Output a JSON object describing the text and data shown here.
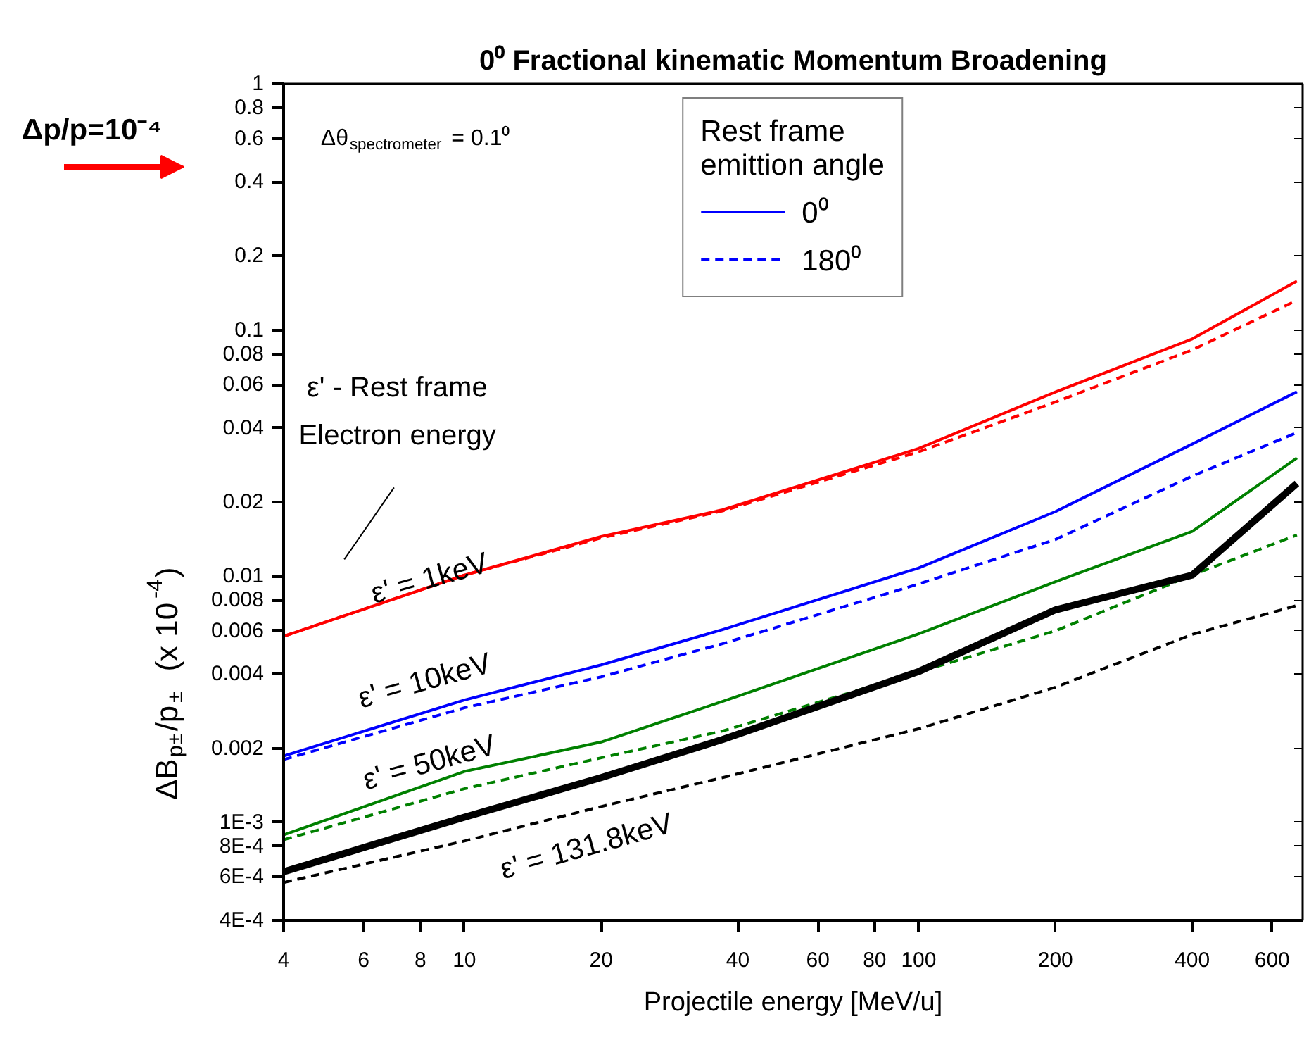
{
  "chart_data": {
    "type": "line",
    "title": "0⁰ Fractional kinematic Momentum Broadening",
    "xlabel": "Projectile energy [MeV/u]",
    "ylabel": "ΔB$_{p±}$/p$_{±}$  (x 10$^{-4}$)",
    "legend_title": "Rest frame\nemittion angle",
    "legend": "top",
    "log": "xy",
    "grid": false,
    "xlim": [
      4,
      700
    ],
    "ylim": [
      0.0004,
      1
    ],
    "xticks": [
      4,
      6,
      8,
      10,
      20,
      40,
      60,
      80,
      100,
      200,
      400,
      600
    ],
    "yticks": [
      {
        "value": 0.0004,
        "label": "4E-4"
      },
      {
        "value": 0.0006,
        "label": "6E-4"
      },
      {
        "value": 0.0008,
        "label": "8E-4"
      },
      {
        "value": 0.001,
        "label": "1E-3"
      },
      0.002,
      0.004,
      0.006,
      0.008,
      0.01,
      0.02,
      0.04,
      0.06,
      0.08,
      0.1,
      0.2,
      0.4,
      0.6,
      0.8,
      1
    ],
    "x": [
      4,
      10,
      20,
      37,
      100,
      200,
      400,
      680
    ],
    "series": [
      {
        "color": "#ff0000",
        "line_style": "solid",
        "values": [
          0.0057,
          0.0101,
          0.0145,
          0.0186,
          0.033,
          0.056,
          0.092,
          0.158
        ]
      },
      {
        "color": "#ff0000",
        "line_style": "dashed",
        "values": [
          0.0057,
          0.0101,
          0.0143,
          0.0184,
          0.032,
          0.051,
          0.083,
          0.132
        ]
      },
      {
        "name": "0⁰",
        "color": "#0000ff",
        "line_style": "solid",
        "values": [
          0.00186,
          0.00314,
          0.00436,
          0.00607,
          0.0108,
          0.0183,
          0.0344,
          0.0561
        ]
      },
      {
        "name": "180⁰",
        "color": "#0000ff",
        "line_style": "dashed",
        "values": [
          0.0018,
          0.00292,
          0.0039,
          0.00532,
          0.0093,
          0.0141,
          0.0255,
          0.0383
        ]
      },
      {
        "color": "#008000",
        "line_style": "solid",
        "values": [
          0.00089,
          0.00161,
          0.00212,
          0.0031,
          0.00583,
          0.0095,
          0.0152,
          0.0302
        ]
      },
      {
        "color": "#008000",
        "line_style": "dashed",
        "values": [
          0.00085,
          0.00137,
          0.00183,
          0.00235,
          0.00408,
          0.006,
          0.0101,
          0.0147
        ]
      },
      {
        "color": "#000000",
        "line_style": "solid",
        "values": [
          0.00063,
          0.00105,
          0.00152,
          0.00217,
          0.0041,
          0.0073,
          0.0101,
          0.0238
        ]
      },
      {
        "color": "#000000",
        "line_style": "dashed",
        "values": [
          0.00057,
          0.00084,
          0.00116,
          0.00152,
          0.0024,
          0.00354,
          0.0058,
          0.0076
        ]
      }
    ],
    "annotations": [
      "Δp/p=10⁻⁴",
      "Δθ$_{spectrometer}$ = 0.1⁰",
      "ε'  -  Rest frame\nElectron energy",
      "ε' = 1keV",
      "ε' = 10keV",
      "ε' = 50keV",
      "ε' = 131.8keV"
    ]
  }
}
